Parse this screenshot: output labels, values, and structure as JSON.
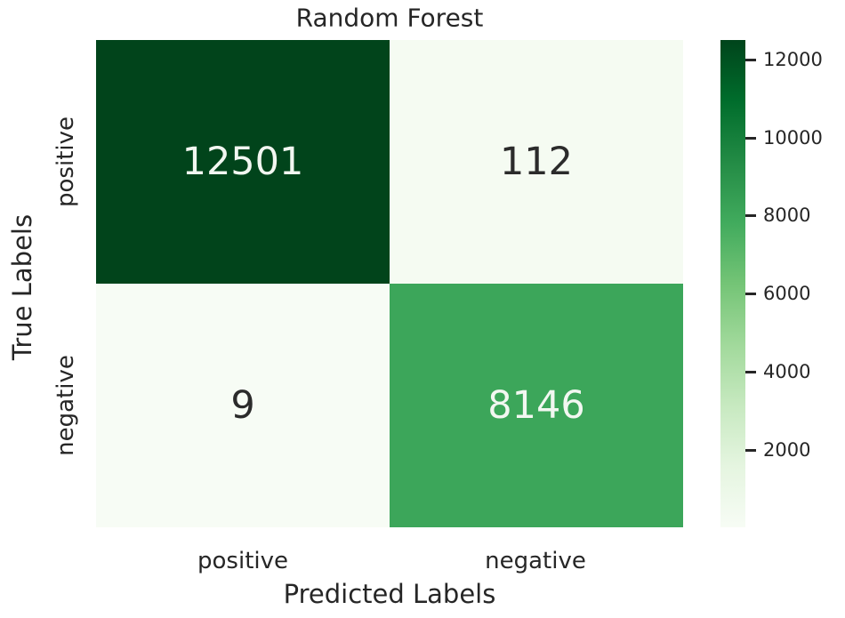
{
  "chart_data": {
    "type": "heatmap",
    "title": "Random Forest",
    "xlabel": "Predicted Labels",
    "ylabel": "True Labels",
    "x_categories": [
      "positive",
      "negative"
    ],
    "y_categories": [
      "positive",
      "negative"
    ],
    "values": [
      [
        12501,
        112
      ],
      [
        9,
        8146
      ]
    ],
    "vmin": 9,
    "vmax": 12501,
    "colormap": "Greens",
    "colorbar_position": "right",
    "colorbar_ticks": [
      "12000",
      "10000",
      "8000",
      "6000",
      "4000",
      "2000"
    ],
    "grid": false
  },
  "colors": {
    "cell_true_pos": "#01441b",
    "cell_false_neg": "#f5fbf2",
    "cell_false_pos": "#f7fcf5",
    "cell_true_neg": "#3ca65a",
    "annot_on_dark": "#f2f7f1",
    "annot_on_light": "#2b2b2b",
    "axis_text": "#262626",
    "gradient_stops": [
      "#00441b",
      "#006d2c",
      "#238b45",
      "#41ab5d",
      "#74c476",
      "#a1d99b",
      "#c7e9c0",
      "#e5f5e0",
      "#f7fcf5"
    ]
  }
}
